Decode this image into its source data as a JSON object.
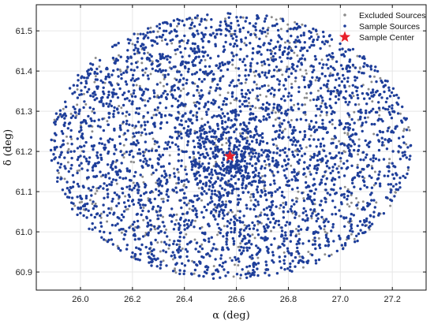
{
  "chart_data": {
    "type": "scatter",
    "title": "",
    "xlabel": "α (deg)",
    "ylabel": "δ (deg)",
    "xlim": [
      25.83,
      27.33
    ],
    "ylim": [
      60.855,
      61.565
    ],
    "x_ticks": [
      26.0,
      26.2,
      26.4,
      26.6,
      26.8,
      27.0,
      27.2
    ],
    "y_ticks": [
      60.9,
      61.0,
      61.1,
      61.2,
      61.3,
      61.4,
      61.5
    ],
    "x_tick_labels": [
      "26.0",
      "26.2",
      "26.4",
      "26.6",
      "26.8",
      "27.0",
      "27.2"
    ],
    "y_tick_labels": [
      "60.9",
      "61.0",
      "61.1",
      "61.2",
      "61.3",
      "61.4",
      "61.5"
    ],
    "grid": true,
    "legend_position": "top-right",
    "field": {
      "center": [
        26.578,
        61.213
      ],
      "radius_ra": 0.695,
      "radius_dec": 0.331,
      "sample_count": 3400,
      "excluded_count": 600
    },
    "series": [
      {
        "name": "Excluded Sources",
        "marker": "dot",
        "color": "#8c8c8c"
      },
      {
        "name": "Sample Sources",
        "marker": "dot",
        "color": "#1f3f9a"
      },
      {
        "name": "Sample Center",
        "marker": "star",
        "color": "#e8202a",
        "points": [
          [
            26.575,
            61.188
          ]
        ]
      }
    ]
  }
}
